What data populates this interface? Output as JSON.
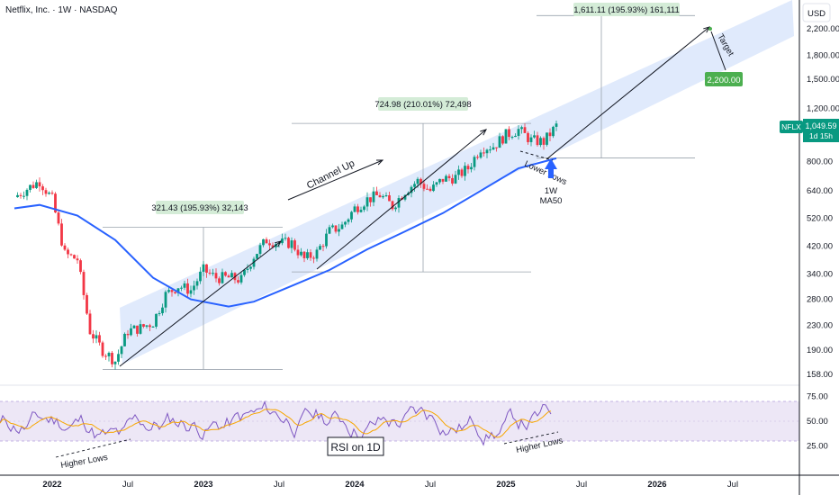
{
  "header": {
    "title": "Netflix, Inc. · 1W · NASDAQ"
  },
  "price_axis": {
    "currency": "USD",
    "ticks": [
      "2,200.00",
      "1,800.00",
      "1,500.00",
      "1,200.00",
      "800.00",
      "640.00",
      "520.00",
      "420.00",
      "340.00",
      "280.00",
      "230.00",
      "190.00",
      "158.00"
    ],
    "tick_values": [
      2200,
      1800,
      1500,
      1200,
      800,
      640,
      520,
      420,
      340,
      280,
      230,
      190,
      158
    ]
  },
  "rsi_axis": {
    "ticks": [
      "75.00",
      "50.00",
      "25.00"
    ],
    "tick_values": [
      75,
      50,
      25
    ]
  },
  "time_axis": {
    "labels": [
      "2022",
      "Jul",
      "2023",
      "Jul",
      "2024",
      "Jul",
      "2025",
      "Jul",
      "2026",
      "Jul"
    ],
    "bold": [
      "2022",
      "2023",
      "2024",
      "2025",
      "2026"
    ]
  },
  "badges": {
    "symbol": "NFLX",
    "price": "1,049.59",
    "countdown": "1d 15h",
    "target_value": "2,200.00"
  },
  "annotations": {
    "measure_1": "321.43 (195.93%) 32,143",
    "measure_2": "724.98 (210.01%) 72,498",
    "measure_3": "1,611.11 (195.93%) 161,111",
    "channel_up": "Channel Up",
    "target": "Target",
    "lower_lows": "Lower Lows",
    "ma50_line1": "1W",
    "ma50_line2": "MA50",
    "rsi_label": "RSI on 1D",
    "higher_lows_1": "Higher Lows",
    "higher_lows_2": "Higher Lows"
  },
  "colors": {
    "up": "#089981",
    "down": "#f23645",
    "ma50": "#2962ff",
    "channel_fill": "#dbe6fb",
    "rsi_line": "#7e57c2",
    "rsi_ma": "#f7a600",
    "rsi_band": "#ede7f6",
    "badge_green": "#4caf50"
  },
  "chart_data": {
    "type": "candlestick",
    "title": "Netflix, Inc. · 1W · NASDAQ",
    "y_scale": "log",
    "y_range": [
      140,
      2700
    ],
    "x_range": [
      "2021-09",
      "2026-10"
    ],
    "series": [
      {
        "name": "NFLX",
        "values": [
          [
            "2021-10",
            610
          ],
          [
            "2021-11",
            650
          ],
          [
            "2021-12",
            690
          ],
          [
            "2022-01",
            600
          ],
          [
            "2022-02",
            395
          ],
          [
            "2022-03",
            380
          ],
          [
            "2022-04",
            220
          ],
          [
            "2022-05",
            190
          ],
          [
            "2022-06",
            175
          ],
          [
            "2022-07",
            220
          ],
          [
            "2022-08",
            225
          ],
          [
            "2022-09",
            235
          ],
          [
            "2022-10",
            290
          ],
          [
            "2022-11",
            310
          ],
          [
            "2022-12",
            300
          ],
          [
            "2023-01",
            350
          ],
          [
            "2023-02",
            330
          ],
          [
            "2023-03",
            330
          ],
          [
            "2023-04",
            325
          ],
          [
            "2023-05",
            390
          ],
          [
            "2023-06",
            440
          ],
          [
            "2023-07",
            430
          ],
          [
            "2023-08",
            430
          ],
          [
            "2023-09",
            380
          ],
          [
            "2023-10",
            400
          ],
          [
            "2023-11",
            470
          ],
          [
            "2023-12",
            490
          ],
          [
            "2024-01",
            560
          ],
          [
            "2024-02",
            600
          ],
          [
            "2024-03",
            620
          ],
          [
            "2024-04",
            570
          ],
          [
            "2024-05",
            640
          ],
          [
            "2024-06",
            690
          ],
          [
            "2024-07",
            640
          ],
          [
            "2024-08",
            700
          ],
          [
            "2024-09",
            710
          ],
          [
            "2024-10",
            760
          ],
          [
            "2024-11",
            890
          ],
          [
            "2024-12",
            900
          ],
          [
            "2025-01",
            980
          ],
          [
            "2025-02",
            1020
          ],
          [
            "2025-03",
            940
          ],
          [
            "2025-04",
            930
          ],
          [
            "2025-05",
            1049.59
          ]
        ]
      },
      {
        "name": "1W MA50",
        "values": [
          [
            "2021-10",
            560
          ],
          [
            "2021-12",
            575
          ],
          [
            "2022-03",
            530
          ],
          [
            "2022-06",
            440
          ],
          [
            "2022-09",
            330
          ],
          [
            "2022-12",
            280
          ],
          [
            "2023-03",
            265
          ],
          [
            "2023-05",
            275
          ],
          [
            "2023-08",
            310
          ],
          [
            "2023-11",
            350
          ],
          [
            "2024-02",
            410
          ],
          [
            "2024-05",
            470
          ],
          [
            "2024-08",
            540
          ],
          [
            "2024-11",
            640
          ],
          [
            "2025-02",
            760
          ],
          [
            "2025-05",
            820
          ]
        ]
      }
    ],
    "measurements": [
      {
        "from_price": 164,
        "to_price": 485,
        "change": "321.43 (195.93%) 32,143"
      },
      {
        "from_price": 345,
        "to_price": 1070,
        "change": "724.98 (210.01%) 72,498"
      },
      {
        "from_price": 822,
        "to_price": 2433,
        "change": "1,611.11 (195.93%) 161,111"
      }
    ],
    "target_price": 2200,
    "last_price": 1049.59,
    "rsi": {
      "name": "RSI",
      "timeframe": "1D",
      "band": [
        30,
        70
      ],
      "range": [
        0,
        100
      ]
    }
  }
}
